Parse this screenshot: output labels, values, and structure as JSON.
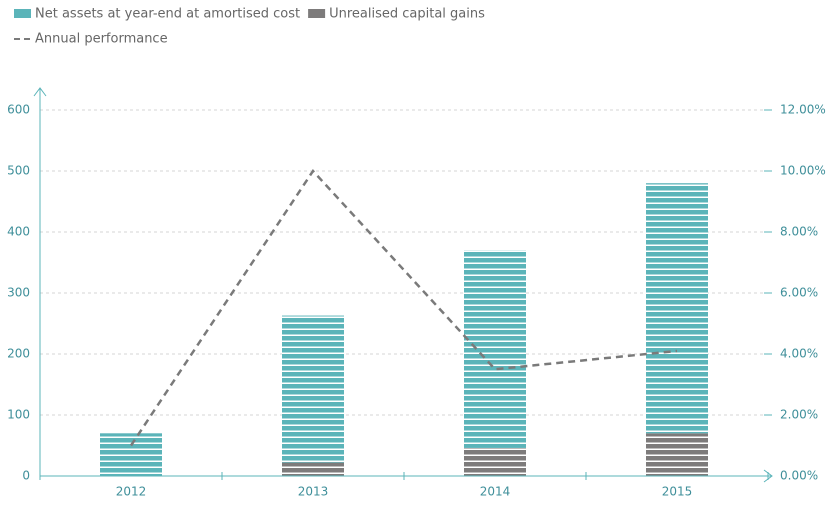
{
  "chart_data": {
    "type": "bar",
    "categories": [
      "2012",
      "2013",
      "2014",
      "2015"
    ],
    "series": [
      {
        "name": "Net assets at year-end at amortised cost",
        "color": "#5bb4b9",
        "values": [
          70,
          241,
          324,
          410
        ]
      },
      {
        "name": "Unrealised capital gains",
        "color": "#7d7b7b",
        "values": [
          0,
          22,
          46,
          70
        ]
      },
      {
        "name": "Annual performance",
        "color": "#7a7a7a",
        "type": "line",
        "axis": "y2",
        "values": [
          1.0,
          10.0,
          3.5,
          4.1
        ]
      }
    ],
    "stacked": true,
    "ylim": [
      0,
      600
    ],
    "yticks": [
      0,
      100,
      200,
      300,
      400,
      500,
      600
    ],
    "y2lim": [
      0,
      12
    ],
    "y2ticks": [
      {
        "value": 0,
        "label": "0.00%"
      },
      {
        "value": 2,
        "label": "2.00%"
      },
      {
        "value": 4,
        "label": "4.00%"
      },
      {
        "value": 6,
        "label": "6.00%"
      },
      {
        "value": 8,
        "label": "8.00%"
      },
      {
        "value": 10,
        "label": "10.00%"
      },
      {
        "value": 12,
        "label": "12.00%"
      }
    ],
    "grid": true,
    "legend": "top-left"
  }
}
